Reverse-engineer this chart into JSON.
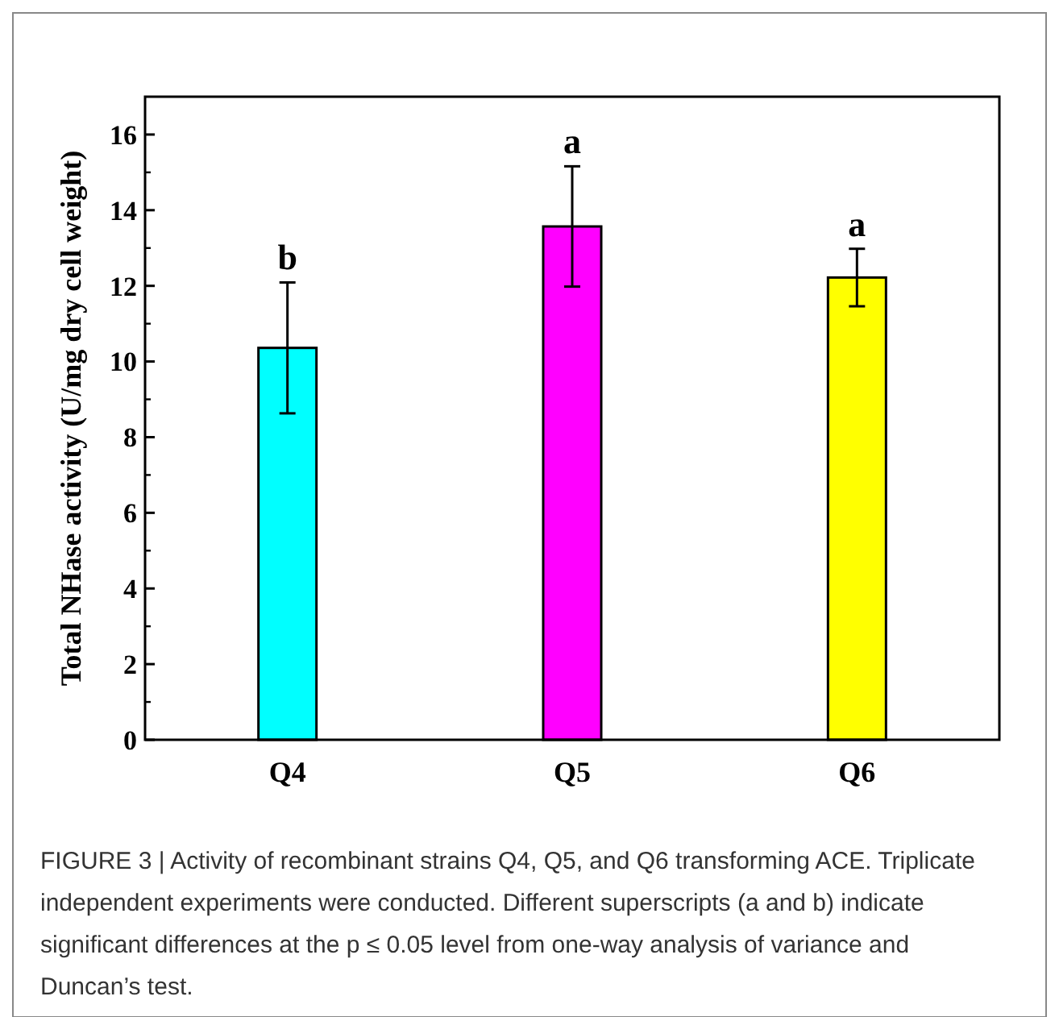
{
  "chart_data": {
    "type": "bar",
    "ylabel": "Total NHase activity (U/mg dry cell weight)",
    "categories": [
      "Q4",
      "Q5",
      "Q6"
    ],
    "values": [
      10.36,
      13.57,
      12.22
    ],
    "errors": [
      1.73,
      1.59,
      0.76
    ],
    "colors": [
      "#00ffff",
      "#ff00ff",
      "#ffff00"
    ],
    "ylim": [
      0,
      17
    ],
    "yticks": [
      0,
      2,
      4,
      6,
      8,
      10,
      12,
      14,
      16
    ],
    "grid": false,
    "annotations": [
      {
        "text": "b",
        "x": "Q4",
        "y": 12.09
      },
      {
        "text": "a",
        "x": "Q5",
        "y": 15.16
      },
      {
        "text": "a",
        "x": "Q6",
        "y": 12.98
      },
      "FIGURE 3 | Activity of recombinant strains Q4, Q5, and Q6 transforming ACE. Triplicate independent experiments were conducted. Different superscripts (a and b) indicate significant differences at the p ≤ 0.05 level from one-way analysis of variance and Duncan’s test."
    ]
  }
}
